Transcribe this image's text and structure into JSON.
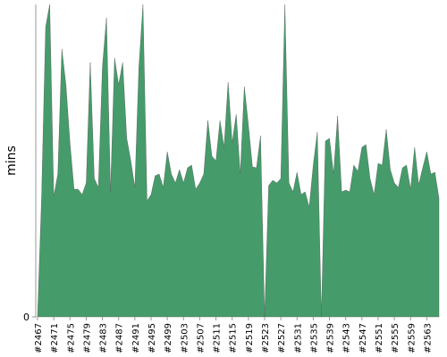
{
  "chart_data": {
    "type": "area",
    "y_label": "mins",
    "color": "#459c6a",
    "ylim": [
      0,
      35
    ],
    "yticks": [
      0
    ],
    "categories": [
      "#2467",
      null,
      null,
      null,
      "#2471",
      null,
      null,
      null,
      "#2475",
      null,
      null,
      null,
      "#2479",
      null,
      null,
      null,
      "#2483",
      null,
      null,
      null,
      "#2487",
      null,
      null,
      null,
      "#2491",
      null,
      null,
      null,
      "#2495",
      null,
      null,
      null,
      "#2499",
      null,
      null,
      null,
      "#2503",
      null,
      null,
      null,
      "#2507",
      null,
      null,
      null,
      "#2511",
      null,
      null,
      null,
      "#2515",
      null,
      null,
      null,
      "#2519",
      null,
      null,
      null,
      "#2523",
      null,
      null,
      null,
      "#2527",
      null,
      null,
      null,
      "#2531",
      null,
      null,
      null,
      "#2535",
      null,
      null,
      null,
      "#2539",
      null,
      null,
      null,
      "#2543",
      null,
      null,
      null,
      "#2547",
      null,
      null,
      null,
      "#2551",
      null,
      null,
      null,
      "#2555",
      null,
      null,
      null,
      "#2559",
      null,
      null,
      null,
      "#2563",
      null,
      null,
      null
    ],
    "values": [
      0,
      13.5,
      32.5,
      35,
      13.5,
      16,
      30,
      26,
      19.5,
      14.3,
      14.3,
      13.7,
      15,
      28.5,
      15.5,
      14.5,
      28,
      33.5,
      14,
      29,
      26,
      28.5,
      20,
      17.5,
      14.5,
      28,
      35,
      13,
      13.7,
      15.8,
      16,
      14.5,
      18.5,
      16,
      15,
      16.5,
      15,
      16.7,
      17,
      14.3,
      15,
      16,
      22,
      18,
      17.5,
      22,
      19,
      26.3,
      19.5,
      22.7,
      16,
      25.8,
      21.5,
      16.8,
      16.7,
      20.3,
      0,
      14.7,
      15.3,
      15,
      15.5,
      35,
      15,
      14,
      16.2,
      13.7,
      14,
      12.3,
      17,
      20.7,
      0,
      19.7,
      20,
      16,
      22.5,
      14,
      14.2,
      14,
      17,
      16.3,
      19,
      19.3,
      15.5,
      13.7,
      17.2,
      17,
      21,
      16.5,
      15,
      14.5,
      16.7,
      17,
      14.3,
      19,
      14.8,
      16.7,
      18.5,
      16,
      16.2,
      13.3
    ]
  }
}
